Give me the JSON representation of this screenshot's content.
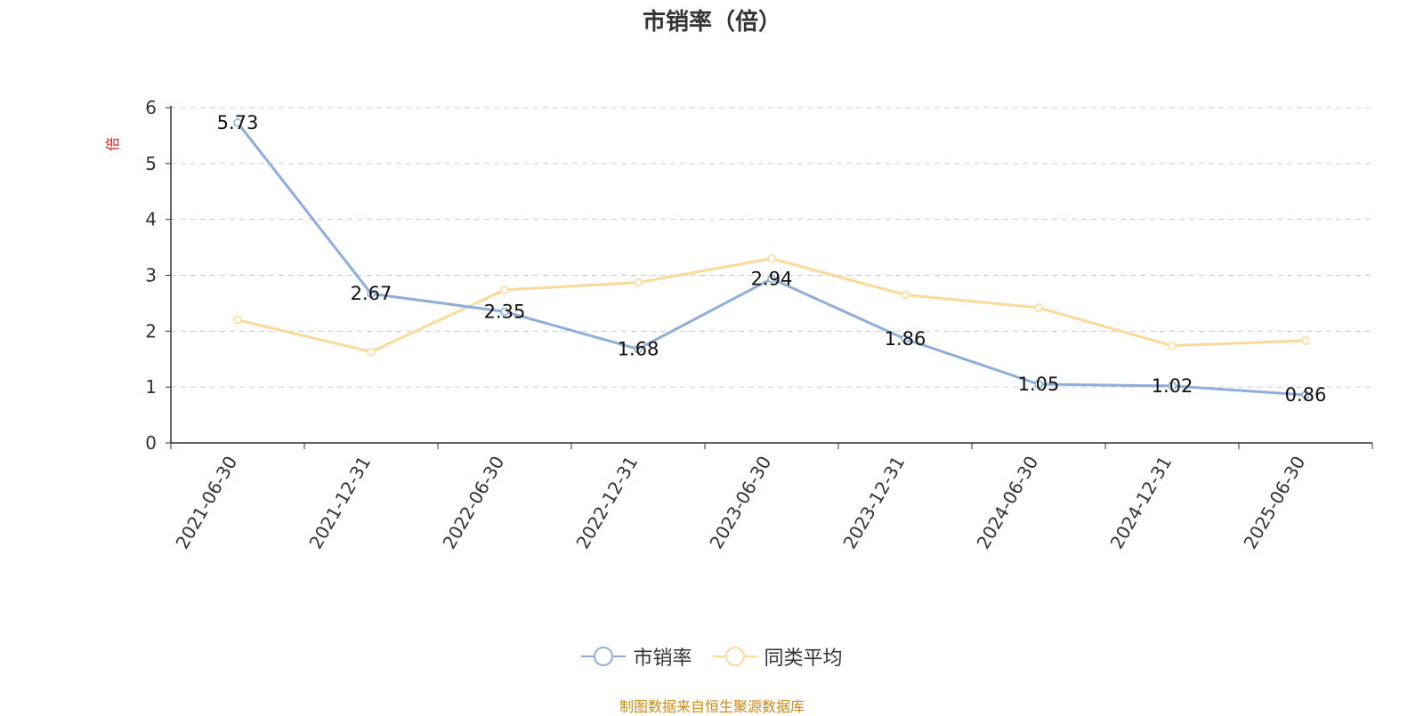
{
  "chart_data": {
    "type": "line",
    "title": "市销率（倍）",
    "ylabel": "倍",
    "ylim": [
      0,
      6
    ],
    "yticks": [
      0,
      1,
      2,
      3,
      4,
      5,
      6
    ],
    "grid": true,
    "legend_position": "bottom-center",
    "categories": [
      "2021-06-30",
      "2021-12-31",
      "2022-06-30",
      "2022-12-31",
      "2023-06-30",
      "2023-12-31",
      "2024-06-30",
      "2024-12-31",
      "2025-06-30"
    ],
    "series": [
      {
        "name": "市销率",
        "color": "#8eaed9",
        "values": [
          5.73,
          2.67,
          2.35,
          1.68,
          2.94,
          1.86,
          1.05,
          1.02,
          0.86
        ],
        "data_labels": [
          "5.73",
          "2.67",
          "2.35",
          "1.68",
          "2.94",
          "1.86",
          "1.05",
          "1.02",
          "0.86"
        ]
      },
      {
        "name": "同类平均",
        "color": "#fbd99b",
        "values": [
          2.2,
          1.63,
          2.74,
          2.87,
          3.3,
          2.65,
          2.42,
          1.74,
          1.83
        ]
      }
    ]
  },
  "source_note": "制图数据来自恒生聚源数据库",
  "colors": {
    "ylabel": "#e02020",
    "source": "#c98a1a",
    "axis": "#333333",
    "grid": "#cccccc"
  }
}
